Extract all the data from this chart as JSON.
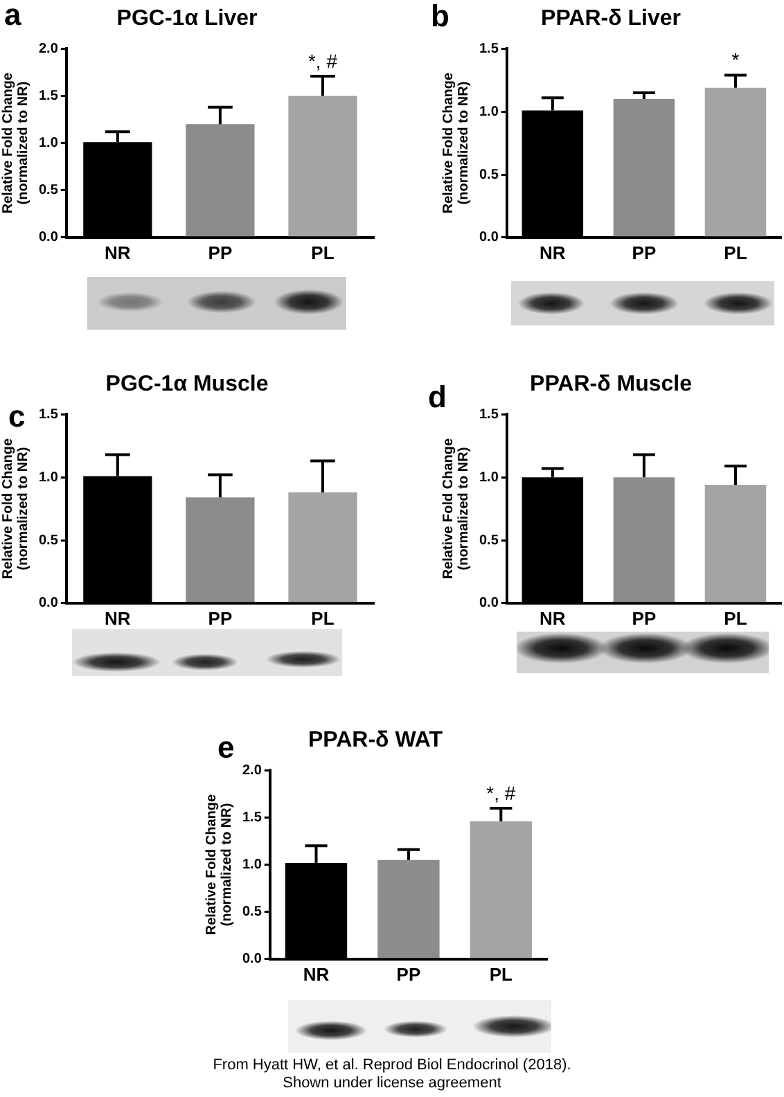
{
  "chart_data": [
    {
      "type": "bar",
      "title": "PGC-1α Liver",
      "ylabel": "Relative Fold Change\n(normalized to NR)",
      "categories": [
        "NR",
        "PP",
        "PL"
      ],
      "values": [
        1.01,
        1.2,
        1.5
      ],
      "colors": [
        "#000000",
        "#8c8c8c",
        "#a4a4a4"
      ],
      "errors": [
        [
          1.01,
          1.12
        ],
        [
          1.2,
          1.38
        ],
        [
          1.5,
          1.71
        ]
      ],
      "ylim": [
        0,
        2
      ],
      "yticks": [
        {
          "value": 0,
          "label": "0.0"
        },
        {
          "value": 0.5,
          "label": "0.5"
        },
        {
          "value": 1,
          "label": "1.0"
        },
        {
          "value": 1.5,
          "label": "1.5"
        },
        {
          "value": 2,
          "label": "2.0"
        }
      ],
      "annotations": [
        "a",
        {
          "text": "*, #",
          "x": "PL",
          "y": 1.71
        }
      ]
    },
    {
      "type": "bar",
      "title": "PPAR-δ Liver",
      "ylabel": "Relative Fold Change\n(normalized to NR)",
      "categories": [
        "NR",
        "PP",
        "PL"
      ],
      "values": [
        1.01,
        1.1,
        1.19
      ],
      "colors": [
        "#000000",
        "#8c8c8c",
        "#a4a4a4"
      ],
      "errors": [
        [
          1.01,
          1.11
        ],
        [
          1.1,
          1.15
        ],
        [
          1.19,
          1.29
        ]
      ],
      "ylim": [
        0,
        1.5
      ],
      "yticks": [
        {
          "value": 0,
          "label": "0.0"
        },
        {
          "value": 0.5,
          "label": "0.5"
        },
        {
          "value": 1,
          "label": "1.0"
        },
        {
          "value": 1.5,
          "label": "1.5"
        }
      ],
      "annotations": [
        "b",
        {
          "text": "*",
          "x": "PL",
          "y": 1.29
        }
      ]
    },
    {
      "type": "bar",
      "title": "PGC-1α Muscle",
      "ylabel": "Relative Fold Change\n(normalized to NR)",
      "categories": [
        "NR",
        "PP",
        "PL"
      ],
      "values": [
        1.01,
        0.84,
        0.88
      ],
      "colors": [
        "#000000",
        "#8c8c8c",
        "#a4a4a4"
      ],
      "errors": [
        [
          1.01,
          1.18
        ],
        [
          0.84,
          1.02
        ],
        [
          0.88,
          1.13
        ]
      ],
      "ylim": [
        0,
        1.5
      ],
      "yticks": [
        {
          "value": 0,
          "label": "0.0"
        },
        {
          "value": 0.5,
          "label": "0.5"
        },
        {
          "value": 1,
          "label": "1.0"
        },
        {
          "value": 1.5,
          "label": "1.5"
        }
      ],
      "annotations": [
        "c"
      ]
    },
    {
      "type": "bar",
      "title": "PPAR-δ Muscle",
      "ylabel": "Relative Fold Change\n(normalized to NR)",
      "categories": [
        "NR",
        "PP",
        "PL"
      ],
      "values": [
        1.0,
        1.0,
        0.94
      ],
      "colors": [
        "#000000",
        "#8c8c8c",
        "#a4a4a4"
      ],
      "errors": [
        [
          1.0,
          1.07
        ],
        [
          1.0,
          1.18
        ],
        [
          0.94,
          1.09
        ]
      ],
      "ylim": [
        0,
        1.5
      ],
      "yticks": [
        {
          "value": 0,
          "label": "0.0"
        },
        {
          "value": 0.5,
          "label": "0.5"
        },
        {
          "value": 1,
          "label": "1.0"
        },
        {
          "value": 1.5,
          "label": "1.5"
        }
      ],
      "annotations": [
        "d"
      ]
    },
    {
      "type": "bar",
      "title": "PPAR-δ WAT",
      "ylabel": "Relative Fold Change\n(normalized to NR)",
      "categories": [
        "NR",
        "PP",
        "PL"
      ],
      "values": [
        1.02,
        1.05,
        1.46
      ],
      "colors": [
        "#000000",
        "#8c8c8c",
        "#a4a4a4"
      ],
      "errors": [
        [
          1.02,
          1.2
        ],
        [
          1.05,
          1.16
        ],
        [
          1.46,
          1.6
        ]
      ],
      "ylim": [
        0,
        2
      ],
      "yticks": [
        {
          "value": 0,
          "label": "0.0"
        },
        {
          "value": 0.5,
          "label": "0.5"
        },
        {
          "value": 1,
          "label": "1.0"
        },
        {
          "value": 1.5,
          "label": "1.5"
        },
        {
          "value": 2,
          "label": "2.0"
        }
      ],
      "annotations": [
        "e",
        {
          "text": "*, #",
          "x": "PL",
          "y": 1.6
        },
        "From Hyatt HW, et al. Reprod Biol Endocrinol (2018).",
        "Shown under license agreement"
      ]
    }
  ]
}
